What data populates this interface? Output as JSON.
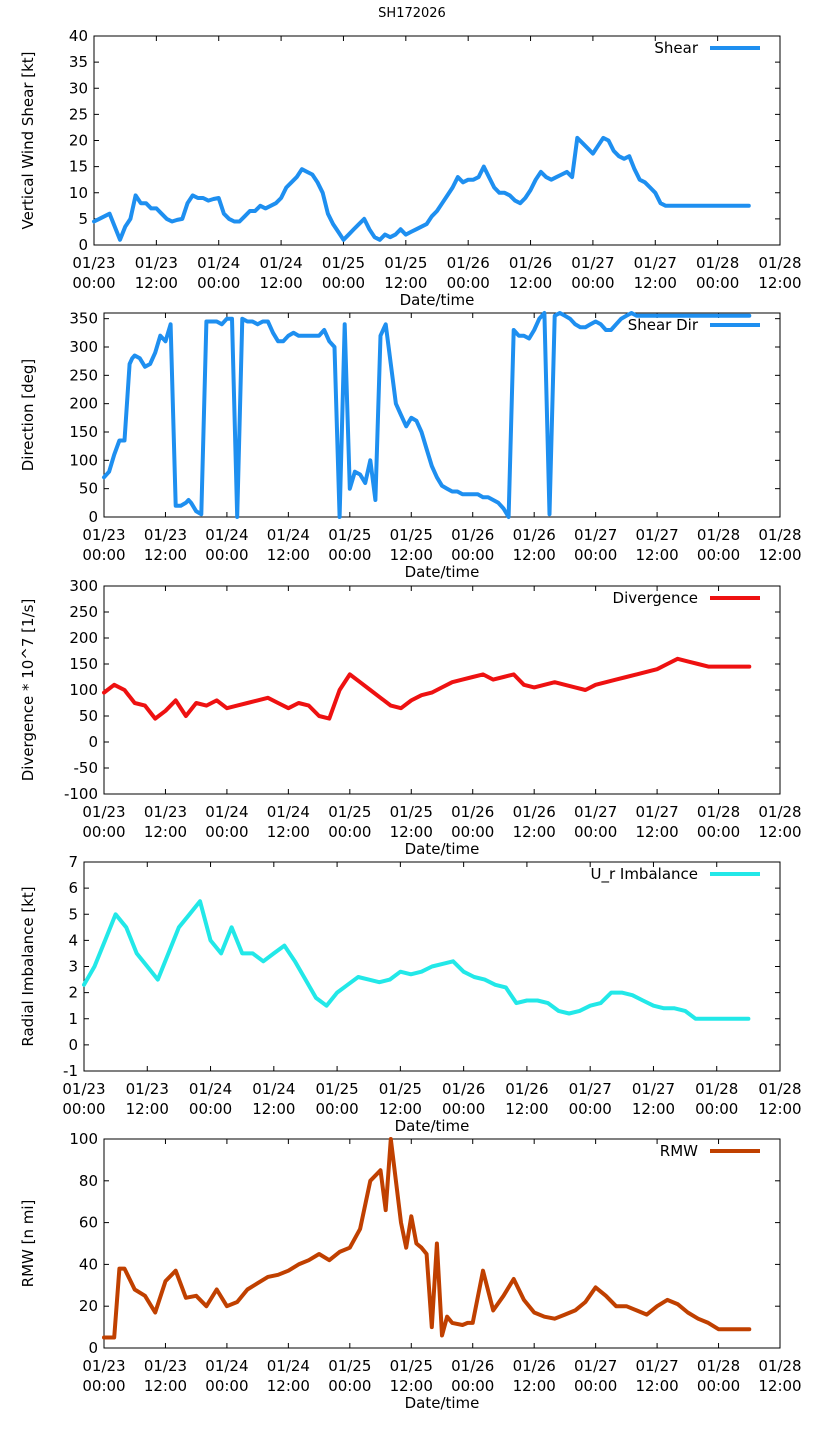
{
  "figure_title": "SH172026",
  "x_tick_labels": [
    {
      "date": "01/23",
      "time": "00:00"
    },
    {
      "date": "01/23",
      "time": "12:00"
    },
    {
      "date": "01/24",
      "time": "00:00"
    },
    {
      "date": "01/24",
      "time": "12:00"
    },
    {
      "date": "01/25",
      "time": "00:00"
    },
    {
      "date": "01/25",
      "time": "12:00"
    },
    {
      "date": "01/26",
      "time": "00:00"
    },
    {
      "date": "01/26",
      "time": "12:00"
    },
    {
      "date": "01/27",
      "time": "00:00"
    },
    {
      "date": "01/27",
      "time": "12:00"
    },
    {
      "date": "01/28",
      "time": "00:00"
    },
    {
      "date": "01/28",
      "time": "12:00"
    }
  ],
  "chart_data": [
    {
      "type": "line",
      "id": "shear",
      "title": "",
      "xlabel": "Date/time",
      "ylabel": "Vertical Wind Shear [kt]",
      "x_unit": "hours since 01/23 00:00",
      "xlim": [
        0,
        132
      ],
      "ylim": [
        0,
        40
      ],
      "yticks": [
        0,
        5,
        10,
        15,
        20,
        25,
        30,
        35,
        40
      ],
      "grid": false,
      "legend": "top-right",
      "series": [
        {
          "name": "Shear",
          "color": "#1e8ff0",
          "x": [
            0,
            1,
            2,
            3,
            4,
            5,
            6,
            7,
            8,
            9,
            10,
            11,
            12,
            13,
            14,
            15,
            16,
            17,
            18,
            19,
            20,
            21,
            22,
            23,
            24,
            25,
            26,
            27,
            28,
            29,
            30,
            31,
            32,
            33,
            34,
            35,
            36,
            37,
            38,
            39,
            40,
            41,
            42,
            43,
            44,
            45,
            46,
            47,
            48,
            49,
            50,
            51,
            52,
            53,
            54,
            55,
            56,
            57,
            58,
            59,
            60,
            61,
            62,
            63,
            64,
            65,
            66,
            67,
            68,
            69,
            70,
            71,
            72,
            73,
            74,
            75,
            76,
            77,
            78,
            79,
            80,
            81,
            82,
            83,
            84,
            85,
            86,
            87,
            88,
            89,
            90,
            91,
            92,
            93,
            94,
            95,
            96,
            97,
            98,
            99,
            100,
            101,
            102,
            103,
            104,
            105,
            106,
            107,
            108,
            109,
            110,
            111,
            112,
            113,
            114,
            115,
            116,
            117,
            118,
            119,
            120,
            121,
            122,
            123,
            124,
            125,
            126
          ],
          "values": [
            4.5,
            5,
            5.5,
            6,
            3.5,
            1,
            3.5,
            5,
            9.5,
            8,
            8,
            7,
            7,
            6,
            5,
            4.5,
            4.8,
            5,
            8,
            9.5,
            9,
            9,
            8.5,
            8.8,
            9,
            6,
            5,
            4.5,
            4.5,
            5.5,
            6.5,
            6.5,
            7.5,
            7,
            7.5,
            8,
            9,
            11,
            12,
            13,
            14.5,
            14,
            13.5,
            12,
            10,
            6,
            4,
            2.5,
            1,
            2,
            3,
            4,
            5,
            3,
            1.5,
            1,
            2,
            1.5,
            2,
            3,
            2,
            2.5,
            3,
            3.5,
            4,
            5.5,
            6.5,
            8,
            9.5,
            11,
            13,
            12,
            12.5,
            12.5,
            13,
            15,
            13,
            11,
            10,
            10,
            9.5,
            8.5,
            8,
            9,
            10.5,
            12.5,
            14,
            13,
            12.5,
            13,
            13.5,
            14,
            13,
            20.5,
            19.5,
            18.5,
            17.5,
            19,
            20.5,
            20,
            18,
            17,
            16.5,
            17,
            14.5,
            12.5,
            12,
            11,
            10,
            8,
            7.5,
            7.5,
            7.5,
            7.5,
            7.5,
            7.5,
            7.5,
            7.5,
            7.5,
            7.5,
            7.5,
            7.5,
            7.5,
            7.5,
            7.5,
            7.5,
            7.5
          ]
        }
      ]
    },
    {
      "type": "line",
      "id": "shear-dir",
      "title": "",
      "xlabel": "Date/time",
      "ylabel": "Direction [deg]",
      "x_unit": "hours since 01/23 00:00",
      "xlim": [
        0,
        132
      ],
      "ylim": [
        0,
        360
      ],
      "yticks": [
        0,
        50,
        100,
        150,
        200,
        250,
        300,
        350
      ],
      "grid": false,
      "legend": "top-right",
      "series": [
        {
          "name": "Shear Dir",
          "color": "#1e8ff0",
          "x": [
            0,
            1,
            2,
            3,
            4,
            5,
            5.5,
            6,
            7,
            8,
            9,
            10,
            11,
            12,
            13,
            14,
            15,
            16,
            16.5,
            17,
            18,
            19,
            20,
            21,
            22,
            23,
            24,
            25,
            26,
            27,
            28,
            29,
            30,
            31,
            32,
            33,
            34,
            35,
            36,
            37,
            38,
            39,
            40,
            41,
            42,
            43,
            44,
            45,
            46,
            47,
            48,
            49,
            50,
            51,
            52,
            53,
            54,
            55,
            56,
            57,
            58,
            59,
            60,
            61,
            62,
            63,
            64,
            65,
            66,
            67,
            68,
            69,
            70,
            71,
            72,
            73,
            74,
            75,
            76,
            77,
            78,
            79,
            80,
            81,
            82,
            83,
            84,
            85,
            86,
            87,
            88,
            89,
            90,
            91,
            92,
            93,
            94,
            95,
            96,
            97,
            98,
            99,
            100,
            101,
            102,
            103,
            104,
            105,
            106,
            107,
            108,
            109,
            110,
            111,
            112,
            113,
            114,
            115,
            116,
            117,
            118,
            119,
            120,
            121,
            122,
            123,
            124,
            125,
            126
          ],
          "values": [
            70,
            80,
            110,
            135,
            135,
            270,
            280,
            285,
            280,
            265,
            270,
            290,
            320,
            310,
            340,
            20,
            20,
            25,
            30,
            25,
            10,
            5,
            345,
            345,
            345,
            340,
            350,
            350,
            0,
            350,
            345,
            345,
            340,
            345,
            345,
            325,
            310,
            310,
            320,
            325,
            320,
            320,
            320,
            320,
            320,
            330,
            310,
            300,
            0,
            340,
            50,
            80,
            75,
            60,
            100,
            30,
            320,
            340,
            270,
            200,
            180,
            160,
            175,
            170,
            150,
            120,
            90,
            70,
            55,
            50,
            45,
            45,
            40,
            40,
            40,
            40,
            35,
            35,
            30,
            25,
            15,
            0,
            330,
            320,
            320,
            315,
            330,
            350,
            360,
            5,
            355,
            360,
            355,
            350,
            340,
            335,
            335,
            340,
            345,
            340,
            330,
            330,
            340,
            350,
            355,
            360,
            355,
            355,
            355,
            355,
            355,
            355,
            355,
            355,
            355,
            355,
            355,
            355,
            355,
            355,
            355,
            355,
            355,
            355,
            355,
            355,
            355,
            355,
            355
          ]
        }
      ]
    },
    {
      "type": "line",
      "id": "divergence",
      "title": "",
      "xlabel": "Date/time",
      "ylabel": "Divergence * 10^7 [1/s]",
      "x_unit": "hours since 01/23 00:00",
      "xlim": [
        0,
        132
      ],
      "ylim": [
        -100,
        300
      ],
      "yticks": [
        -100,
        -50,
        0,
        50,
        100,
        150,
        200,
        250,
        300
      ],
      "grid": false,
      "legend": "top-right",
      "series": [
        {
          "name": "Divergence",
          "color": "#ee1111",
          "x": [
            0,
            2,
            4,
            6,
            8,
            10,
            12,
            14,
            16,
            18,
            20,
            22,
            24,
            26,
            28,
            30,
            32,
            34,
            36,
            38,
            40,
            42,
            44,
            46,
            48,
            50,
            52,
            54,
            56,
            58,
            60,
            62,
            64,
            66,
            68,
            70,
            72,
            74,
            76,
            78,
            80,
            82,
            84,
            86,
            88,
            90,
            92,
            94,
            96,
            98,
            100,
            102,
            104,
            106,
            108,
            110,
            112,
            114,
            116,
            118,
            120,
            122,
            124,
            126
          ],
          "values": [
            95,
            110,
            100,
            75,
            70,
            45,
            60,
            80,
            50,
            75,
            70,
            80,
            65,
            70,
            75,
            80,
            85,
            75,
            65,
            75,
            70,
            50,
            45,
            100,
            130,
            115,
            100,
            85,
            70,
            65,
            80,
            90,
            95,
            105,
            115,
            120,
            125,
            130,
            120,
            125,
            130,
            110,
            105,
            110,
            115,
            110,
            105,
            100,
            110,
            115,
            120,
            125,
            130,
            135,
            140,
            150,
            160,
            155,
            150,
            145,
            145,
            145,
            145,
            145
          ]
        }
      ]
    },
    {
      "type": "line",
      "id": "ur-imbalance",
      "title": "",
      "xlabel": "Date/time",
      "ylabel": "Radial Imbalance [kt]",
      "x_unit": "hours since 01/23 00:00",
      "xlim": [
        0,
        132
      ],
      "ylim": [
        -1,
        7
      ],
      "yticks": [
        -1,
        0,
        1,
        2,
        3,
        4,
        5,
        6,
        7
      ],
      "grid": false,
      "legend": "top-right",
      "series": [
        {
          "name": "U_r Imbalance",
          "color": "#22e8e8",
          "x": [
            0,
            2,
            4,
            6,
            8,
            10,
            12,
            14,
            16,
            18,
            20,
            22,
            24,
            26,
            28,
            30,
            32,
            34,
            36,
            38,
            40,
            42,
            44,
            46,
            48,
            50,
            52,
            54,
            56,
            58,
            60,
            62,
            64,
            66,
            68,
            70,
            72,
            74,
            76,
            78,
            80,
            82,
            84,
            86,
            88,
            90,
            92,
            94,
            96,
            98,
            100,
            102,
            104,
            106,
            108,
            110,
            112,
            114,
            116,
            118,
            120,
            122,
            124,
            126
          ],
          "values": [
            2.3,
            3,
            4,
            5,
            4.5,
            3.5,
            3,
            2.5,
            3.5,
            4.5,
            5,
            5.5,
            4,
            3.5,
            4.5,
            3.5,
            3.5,
            3.2,
            3.5,
            3.8,
            3.2,
            2.5,
            1.8,
            1.5,
            2,
            2.3,
            2.6,
            2.5,
            2.4,
            2.5,
            2.8,
            2.7,
            2.8,
            3,
            3.1,
            3.2,
            2.8,
            2.6,
            2.5,
            2.3,
            2.2,
            1.6,
            1.7,
            1.7,
            1.6,
            1.3,
            1.2,
            1.3,
            1.5,
            1.6,
            2,
            2,
            1.9,
            1.7,
            1.5,
            1.4,
            1.4,
            1.3,
            1,
            1,
            1,
            1,
            1,
            1
          ]
        }
      ]
    },
    {
      "type": "line",
      "id": "rmw",
      "title": "",
      "xlabel": "Date/time",
      "ylabel": "RMW [n mi]",
      "x_unit": "hours since 01/23 00:00",
      "xlim": [
        0,
        132
      ],
      "ylim": [
        0,
        100
      ],
      "yticks": [
        0,
        20,
        40,
        60,
        80,
        100
      ],
      "grid": false,
      "legend": "top-right",
      "series": [
        {
          "name": "RMW",
          "color": "#c04000",
          "x": [
            0,
            2,
            3,
            4,
            6,
            8,
            10,
            12,
            14,
            16,
            18,
            20,
            22,
            24,
            26,
            28,
            30,
            32,
            34,
            36,
            38,
            40,
            42,
            44,
            46,
            48,
            50,
            52,
            54,
            55,
            56,
            58,
            59,
            60,
            61,
            62,
            63,
            64,
            65,
            66,
            67,
            68,
            70,
            71,
            72,
            74,
            76,
            78,
            80,
            82,
            84,
            86,
            88,
            90,
            92,
            94,
            96,
            98,
            100,
            102,
            104,
            106,
            108,
            110,
            112,
            114,
            116,
            118,
            120,
            122,
            124,
            126
          ],
          "values": [
            5,
            5,
            38,
            38,
            28,
            25,
            17,
            32,
            37,
            24,
            25,
            20,
            28,
            20,
            22,
            28,
            31,
            34,
            35,
            37,
            40,
            42,
            45,
            42,
            46,
            48,
            57,
            80,
            85,
            66,
            100,
            60,
            48,
            63,
            50,
            48,
            45,
            10,
            50,
            6,
            15,
            12,
            11,
            12,
            12,
            37,
            18,
            25,
            33,
            23,
            17,
            15,
            14,
            16,
            18,
            22,
            29,
            25,
            20,
            20,
            18,
            16,
            20,
            23,
            21,
            17,
            14,
            12,
            9,
            9,
            9,
            9
          ]
        }
      ]
    }
  ]
}
